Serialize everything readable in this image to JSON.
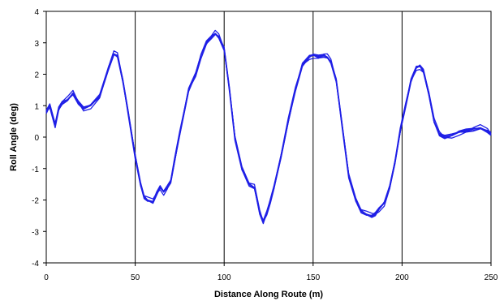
{
  "chart_data": {
    "type": "line",
    "title": "",
    "xlabel": "Distance Along Route (m)",
    "ylabel": "Roll Angle (deg)",
    "xlim": [
      0,
      250
    ],
    "ylim": [
      -4,
      4
    ],
    "xticks": [
      0,
      50,
      100,
      150,
      200,
      250
    ],
    "yticks": [
      -4,
      -3,
      -2,
      -1,
      0,
      1,
      2,
      3,
      4
    ],
    "grid": "vertical",
    "legend": "none",
    "line_color": "#1f1fe6",
    "series_count_overlaid": 6,
    "series": [
      {
        "x": [
          0,
          2,
          5,
          7,
          9,
          12,
          15,
          18,
          21,
          25,
          30,
          35,
          38,
          40,
          43,
          46,
          50,
          53,
          55,
          57,
          60,
          62,
          64,
          66,
          68,
          70,
          72,
          75,
          80,
          84,
          87,
          90,
          93,
          95,
          97,
          100,
          103,
          106,
          110,
          114,
          117,
          120,
          122,
          124,
          126,
          128,
          132,
          136,
          140,
          144,
          148,
          150,
          153,
          156,
          158,
          160,
          163,
          166,
          170,
          174,
          177,
          180,
          183,
          185,
          187,
          190,
          193,
          196,
          199,
          202,
          205,
          208,
          210,
          212,
          215,
          218,
          221,
          224,
          228,
          232,
          236,
          240,
          244,
          248,
          250
        ],
        "y": [
          0.8,
          1.0,
          0.4,
          0.9,
          1.1,
          1.2,
          1.4,
          1.1,
          0.9,
          1.0,
          1.3,
          2.2,
          2.65,
          2.6,
          1.8,
          0.8,
          -0.6,
          -1.5,
          -1.9,
          -2.0,
          -2.05,
          -1.8,
          -1.6,
          -1.75,
          -1.6,
          -1.4,
          -0.8,
          0.1,
          1.5,
          2.0,
          2.6,
          3.0,
          3.2,
          3.3,
          3.2,
          2.8,
          1.5,
          0.0,
          -1.0,
          -1.5,
          -1.6,
          -2.4,
          -2.7,
          -2.4,
          -2.0,
          -1.6,
          -0.6,
          0.5,
          1.5,
          2.3,
          2.55,
          2.6,
          2.55,
          2.6,
          2.55,
          2.4,
          1.8,
          0.5,
          -1.2,
          -2.0,
          -2.35,
          -2.45,
          -2.5,
          -2.45,
          -2.3,
          -2.1,
          -1.6,
          -0.8,
          0.2,
          1.0,
          1.8,
          2.2,
          2.25,
          2.1,
          1.4,
          0.5,
          0.1,
          0.0,
          0.05,
          0.15,
          0.2,
          0.25,
          0.3,
          0.2,
          0.1
        ]
      }
    ]
  }
}
